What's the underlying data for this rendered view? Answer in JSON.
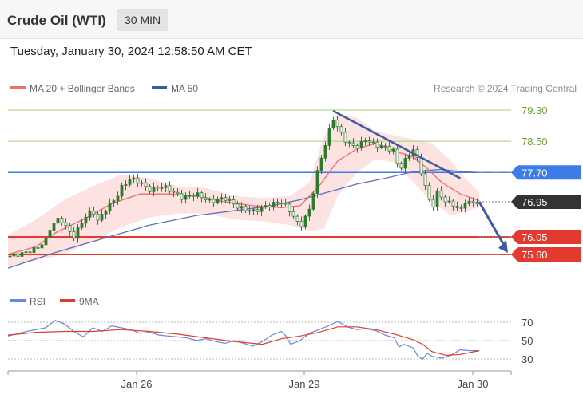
{
  "header": {
    "title": "Crude Oil (WTI)",
    "interval": "30 MIN"
  },
  "timestamp": "Tuesday, January 30, 2024 12:58:50 AM CET",
  "legend": {
    "ma20": "MA 20 + Bollinger Bands",
    "ma50": "MA 50",
    "credit": "Research © 2024 Trading Central"
  },
  "rsi_legend": {
    "rsi": "RSI",
    "ma9": "9MA"
  },
  "colors": {
    "ma20": "#e8716f",
    "band_fill": "#fbdddc",
    "ma50": "#5c6fb8",
    "candle": "#2f7a2f",
    "green_line": "#a6cf7a",
    "green_label": "#6aa53b",
    "blue_level": "#3d7be8",
    "red_level": "#e23a2e",
    "current": "#333333",
    "trend": "#3f5aa3",
    "rsi": "#6b86e0",
    "rsi_ma": "#e23a2e"
  },
  "chart_data": [
    {
      "type": "line",
      "title": "Crude Oil (WTI)",
      "x_ticks": [
        "Jan 26",
        "Jan 29",
        "Jan 30"
      ],
      "ylim": [
        75.3,
        79.45
      ],
      "levels": [
        {
          "value": 79.3,
          "label": "79.30",
          "color": "#a6cf7a",
          "labelColor": "#6aa53b",
          "style": "text"
        },
        {
          "value": 78.5,
          "label": "78.50",
          "color": "#a6cf7a",
          "labelColor": "#6aa53b",
          "style": "text"
        },
        {
          "value": 77.7,
          "label": "77.70",
          "color": "#3d7be8",
          "labelColor": "#ffffff",
          "style": "box"
        },
        {
          "value": 76.05,
          "label": "76.05",
          "color": "#e23a2e",
          "labelColor": "#ffffff",
          "style": "box"
        },
        {
          "value": 75.6,
          "label": "75.60",
          "color": "#e23a2e",
          "labelColor": "#ffffff",
          "style": "box"
        }
      ],
      "current": {
        "value": 76.95,
        "label": "76.95"
      },
      "price": [
        [
          0,
          75.55
        ],
        [
          3,
          75.62
        ],
        [
          6,
          75.75
        ],
        [
          8,
          75.95
        ],
        [
          9,
          76.3
        ],
        [
          11,
          76.55
        ],
        [
          12,
          76.35
        ],
        [
          14,
          76.05
        ],
        [
          16,
          76.5
        ],
        [
          18,
          76.75
        ],
        [
          19,
          76.45
        ],
        [
          21,
          76.8
        ],
        [
          23,
          77.05
        ],
        [
          24,
          77.3
        ],
        [
          26,
          77.55
        ],
        [
          28,
          77.45
        ],
        [
          30,
          77.25
        ],
        [
          33,
          77.35
        ],
        [
          35,
          77.2
        ],
        [
          37,
          77.05
        ],
        [
          40,
          77.15
        ],
        [
          43,
          76.95
        ],
        [
          46,
          77.05
        ],
        [
          49,
          76.8
        ],
        [
          52,
          76.7
        ],
        [
          55,
          76.85
        ],
        [
          58,
          76.95
        ],
        [
          60,
          76.7
        ],
        [
          62,
          76.3
        ],
        [
          64,
          76.75
        ],
        [
          65,
          77.3
        ],
        [
          66,
          77.9
        ],
        [
          67,
          78.25
        ],
        [
          68,
          78.7
        ],
        [
          69,
          79.1
        ],
        [
          70,
          78.85
        ],
        [
          72,
          78.45
        ],
        [
          74,
          78.35
        ],
        [
          76,
          78.55
        ],
        [
          78,
          78.4
        ],
        [
          80,
          78.35
        ],
        [
          82,
          78.25
        ],
        [
          83,
          77.75
        ],
        [
          85,
          78.15
        ],
        [
          86,
          78.3
        ],
        [
          87,
          78.0
        ],
        [
          88,
          77.6
        ],
        [
          89,
          77.15
        ],
        [
          90,
          76.75
        ],
        [
          91,
          77.2
        ],
        [
          93,
          76.95
        ],
        [
          95,
          76.85
        ],
        [
          96,
          76.7
        ],
        [
          97,
          76.95
        ],
        [
          99,
          76.92
        ],
        [
          100,
          76.95
        ]
      ],
      "ma20": [
        [
          0,
          75.6
        ],
        [
          6,
          75.8
        ],
        [
          10,
          76.15
        ],
        [
          16,
          76.5
        ],
        [
          22,
          76.9
        ],
        [
          28,
          77.15
        ],
        [
          34,
          77.15
        ],
        [
          40,
          77.1
        ],
        [
          46,
          76.95
        ],
        [
          52,
          76.85
        ],
        [
          58,
          76.8
        ],
        [
          62,
          76.85
        ],
        [
          66,
          77.35
        ],
        [
          70,
          78.0
        ],
        [
          74,
          78.3
        ],
        [
          78,
          78.45
        ],
        [
          82,
          78.25
        ],
        [
          86,
          78.1
        ],
        [
          89,
          77.8
        ],
        [
          92,
          77.45
        ],
        [
          96,
          77.15
        ],
        [
          100,
          76.98
        ]
      ],
      "bb_upper": [
        [
          0,
          76.1
        ],
        [
          6,
          76.5
        ],
        [
          12,
          77.0
        ],
        [
          18,
          77.35
        ],
        [
          24,
          77.65
        ],
        [
          30,
          77.55
        ],
        [
          36,
          77.35
        ],
        [
          42,
          77.3
        ],
        [
          48,
          77.1
        ],
        [
          54,
          77.05
        ],
        [
          60,
          77.1
        ],
        [
          64,
          77.45
        ],
        [
          67,
          78.6
        ],
        [
          70,
          79.2
        ],
        [
          74,
          79.1
        ],
        [
          78,
          78.75
        ],
        [
          82,
          78.65
        ],
        [
          86,
          78.55
        ],
        [
          90,
          78.45
        ],
        [
          94,
          78.0
        ],
        [
          97,
          77.55
        ],
        [
          100,
          77.2
        ]
      ],
      "bb_lower": [
        [
          0,
          75.3
        ],
        [
          6,
          75.45
        ],
        [
          12,
          75.6
        ],
        [
          18,
          75.95
        ],
        [
          24,
          76.3
        ],
        [
          30,
          76.55
        ],
        [
          36,
          76.65
        ],
        [
          42,
          76.65
        ],
        [
          48,
          76.5
        ],
        [
          54,
          76.45
        ],
        [
          60,
          76.35
        ],
        [
          64,
          76.2
        ],
        [
          67,
          76.25
        ],
        [
          70,
          77.1
        ],
        [
          74,
          77.7
        ],
        [
          78,
          78.05
        ],
        [
          82,
          77.95
        ],
        [
          86,
          77.45
        ],
        [
          90,
          76.95
        ],
        [
          94,
          76.6
        ],
        [
          97,
          76.7
        ],
        [
          100,
          76.8
        ]
      ],
      "ma50": [
        [
          0,
          75.25
        ],
        [
          10,
          75.65
        ],
        [
          20,
          76.0
        ],
        [
          30,
          76.35
        ],
        [
          40,
          76.6
        ],
        [
          50,
          76.75
        ],
        [
          56,
          76.85
        ],
        [
          62,
          77.0
        ],
        [
          68,
          77.2
        ],
        [
          74,
          77.4
        ],
        [
          80,
          77.55
        ],
        [
          86,
          77.72
        ],
        [
          92,
          77.78
        ],
        [
          96,
          77.72
        ],
        [
          100,
          77.7
        ]
      ],
      "trendline": [
        [
          69,
          79.28
        ],
        [
          96,
          77.55
        ]
      ]
    },
    {
      "type": "line",
      "title": "RSI",
      "ylim": [
        25,
        75
      ],
      "levels": [
        70,
        50,
        30
      ],
      "series": [
        {
          "name": "RSI",
          "values": [
            [
              0,
              55
            ],
            [
              4,
              60
            ],
            [
              8,
              64
            ],
            [
              10,
              72
            ],
            [
              12,
              68
            ],
            [
              14,
              60
            ],
            [
              16,
              54
            ],
            [
              18,
              64
            ],
            [
              20,
              60
            ],
            [
              22,
              66
            ],
            [
              24,
              64
            ],
            [
              26,
              62
            ],
            [
              28,
              58
            ],
            [
              30,
              59
            ],
            [
              32,
              56
            ],
            [
              34,
              55
            ],
            [
              36,
              54
            ],
            [
              38,
              53
            ],
            [
              40,
              50
            ],
            [
              42,
              52
            ],
            [
              44,
              49
            ],
            [
              46,
              47
            ],
            [
              48,
              50
            ],
            [
              50,
              47
            ],
            [
              52,
              44
            ],
            [
              54,
              49
            ],
            [
              56,
              56
            ],
            [
              58,
              60
            ],
            [
              59,
              55
            ],
            [
              60,
              46
            ],
            [
              62,
              50
            ],
            [
              64,
              58
            ],
            [
              66,
              62
            ],
            [
              68,
              66
            ],
            [
              70,
              71
            ],
            [
              72,
              65
            ],
            [
              74,
              62
            ],
            [
              76,
              63
            ],
            [
              78,
              61
            ],
            [
              80,
              56
            ],
            [
              82,
              53
            ],
            [
              83,
              43
            ],
            [
              84,
              46
            ],
            [
              86,
              42
            ],
            [
              87,
              33
            ],
            [
              88,
              30
            ],
            [
              89,
              36
            ],
            [
              90,
              33
            ],
            [
              92,
              31
            ],
            [
              94,
              34
            ],
            [
              96,
              40
            ],
            [
              98,
              39
            ],
            [
              100,
              39
            ]
          ]
        },
        {
          "name": "9MA",
          "values": [
            [
              0,
              56
            ],
            [
              6,
              59
            ],
            [
              12,
              60
            ],
            [
              18,
              60
            ],
            [
              24,
              62
            ],
            [
              30,
              60
            ],
            [
              36,
              57
            ],
            [
              42,
              53
            ],
            [
              48,
              49
            ],
            [
              54,
              46
            ],
            [
              58,
              52
            ],
            [
              62,
              55
            ],
            [
              66,
              59
            ],
            [
              70,
              65
            ],
            [
              74,
              65
            ],
            [
              78,
              62
            ],
            [
              82,
              57
            ],
            [
              86,
              51
            ],
            [
              88,
              46
            ],
            [
              90,
              38
            ],
            [
              93,
              34
            ],
            [
              96,
              35
            ],
            [
              100,
              39
            ]
          ]
        }
      ]
    }
  ]
}
